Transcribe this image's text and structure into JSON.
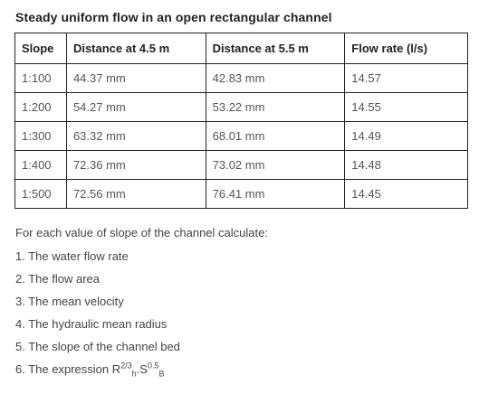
{
  "title": "Steady uniform flow in an open rectangular channel",
  "table": {
    "headers": [
      "Slope",
      "Distance at 4.5 m",
      "Distance at 5.5 m",
      "Flow rate (l/s)"
    ],
    "rows": [
      [
        "1:100",
        "44.37 mm",
        "42.83 mm",
        "14.57"
      ],
      [
        "1:200",
        "54.27 mm",
        "53.22 mm",
        "14.55"
      ],
      [
        "1:300",
        "63.32 mm",
        "68.01 mm",
        "14.49"
      ],
      [
        "1:400",
        "72.36 mm",
        "73.02 mm",
        "14.48"
      ],
      [
        "1:500",
        "72.56 mm",
        "76.41 mm",
        "14.45"
      ]
    ]
  },
  "instructions": {
    "intro": "For each value of slope of the channel calculate:",
    "items": [
      "1. The water flow rate",
      "2. The flow area",
      "3. The mean velocity",
      "4. The hydraulic mean radius",
      "5. The slope of the channel bed"
    ],
    "item6": {
      "prefix": "6. The expression R",
      "sup1": "2/3",
      "sub1": "h",
      "mid": ".S",
      "sup2": "0.5",
      "sub2": "B"
    }
  }
}
